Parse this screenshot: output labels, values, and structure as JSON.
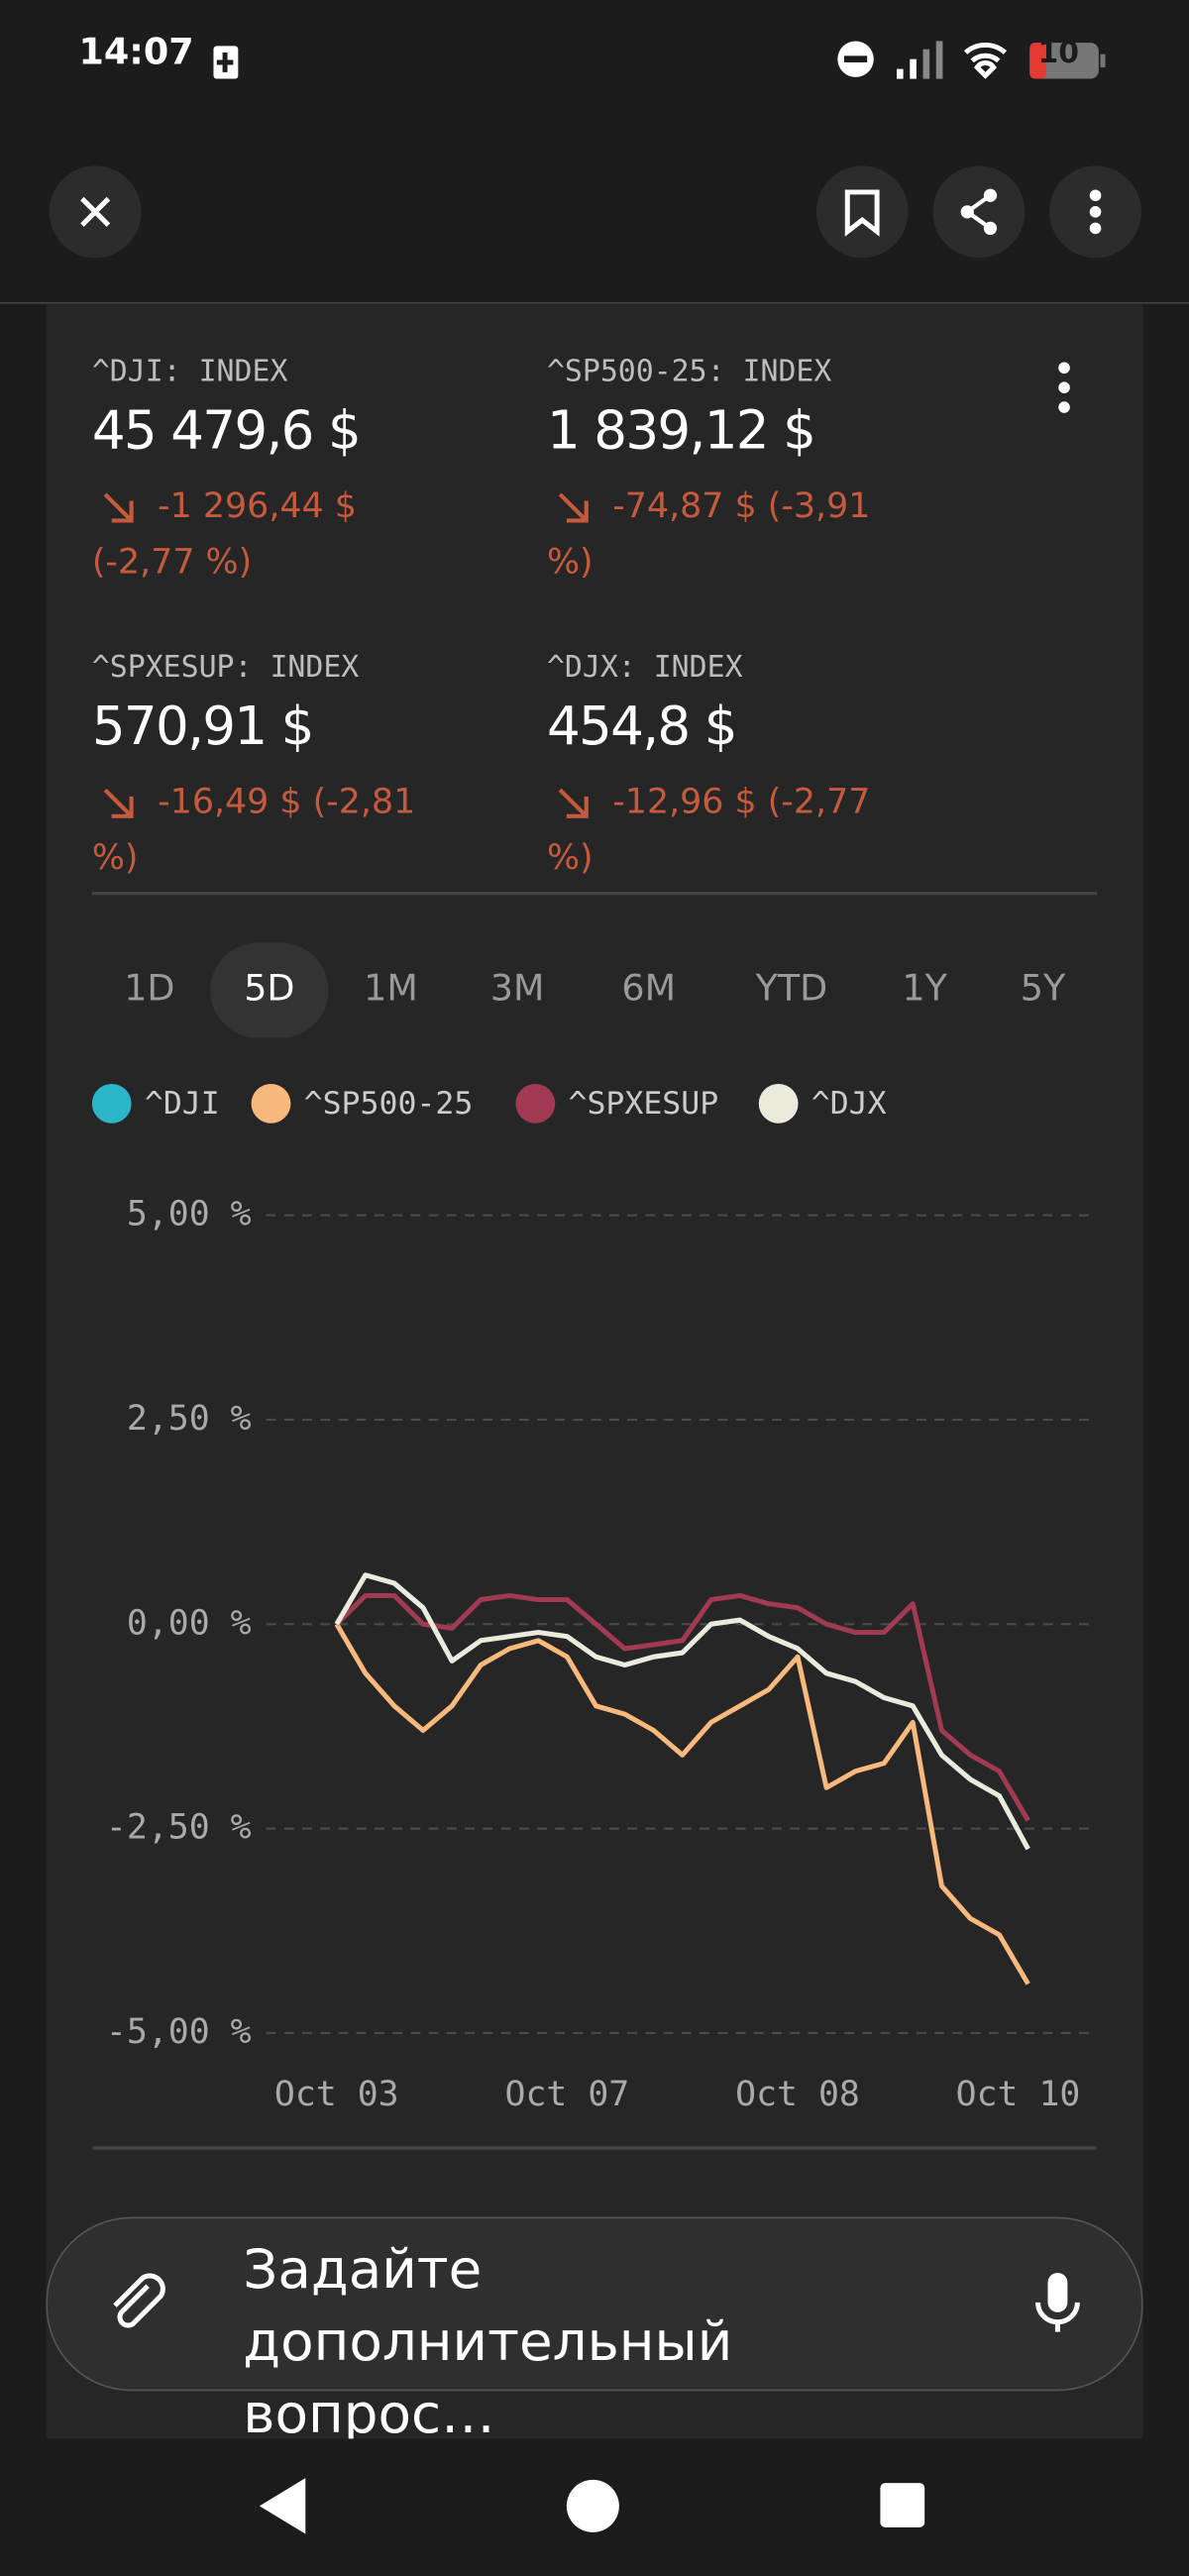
{
  "status_bar": {
    "time": "14:07",
    "battery": "10"
  },
  "quotes": [
    {
      "name": "^DJI: INDEX",
      "price": "45 479,6 $",
      "change": "-1 296,44 $ (-2,77 %)"
    },
    {
      "name": "^SP500-25: INDEX",
      "price": "1 839,12 $",
      "change": "-74,87 $ (-3,91 %)"
    },
    {
      "name": "^SPXESUP: INDEX",
      "price": "570,91 $",
      "change": "-16,49 $ (-2,81 %)"
    },
    {
      "name": "^DJX: INDEX",
      "price": "454,8 $",
      "change": "-12,96 $ (-2,77 %)"
    }
  ],
  "periods": [
    "1D",
    "5D",
    "1M",
    "3M",
    "6M",
    "YTD",
    "1Y",
    "5Y"
  ],
  "active_period": "5D",
  "chart_data": {
    "type": "line",
    "x": [
      0,
      0.125,
      0.25,
      0.375,
      0.5,
      0.625,
      0.75,
      0.875,
      1,
      1.125,
      1.25,
      1.375,
      1.5,
      1.625,
      1.75,
      1.875,
      2,
      2.125,
      2.25,
      2.375,
      2.5,
      2.625,
      2.75,
      2.875,
      3
    ],
    "xlim": [
      0,
      3
    ],
    "xticks": [
      {
        "value": 0,
        "label": "Oct 03"
      },
      {
        "value": 1,
        "label": "Oct 07"
      },
      {
        "value": 2,
        "label": "Oct 08"
      },
      {
        "value": 3,
        "label": "Oct 10"
      }
    ],
    "ylim": [
      -5,
      5
    ],
    "yticks": [
      {
        "value": 5,
        "label": "5,00 %"
      },
      {
        "value": 2.5,
        "label": "2,50 %"
      },
      {
        "value": 0,
        "label": "0,00 %"
      },
      {
        "value": -2.5,
        "label": "-2,50 %"
      },
      {
        "value": -5,
        "label": "-5,00 %"
      }
    ],
    "grid": true,
    "series": [
      {
        "name": "^DJI",
        "color": "#2bb5c8",
        "values": [
          0,
          0.6,
          0.5,
          0.2,
          -0.45,
          -0.2,
          -0.15,
          -0.1,
          -0.15,
          -0.4,
          -0.5,
          -0.4,
          -0.35,
          0,
          0.05,
          -0.15,
          -0.3,
          -0.6,
          -0.7,
          -0.9,
          -1,
          -1.6,
          -1.9,
          -2.1,
          -2.75
        ]
      },
      {
        "name": "^SP500-25",
        "color": "#f8b97c",
        "values": [
          0,
          -0.6,
          -1,
          -1.3,
          -1,
          -0.5,
          -0.3,
          -0.2,
          -0.4,
          -1,
          -1.1,
          -1.3,
          -1.6,
          -1.2,
          -1,
          -0.8,
          -0.4,
          -2,
          -1.8,
          -1.7,
          -1.2,
          -3.2,
          -3.6,
          -3.8,
          -4.4
        ]
      },
      {
        "name": "^SPXESUP",
        "color": "#a23b52",
        "values": [
          0,
          0.35,
          0.35,
          0,
          -0.05,
          0.3,
          0.35,
          0.3,
          0.3,
          0,
          -0.3,
          -0.25,
          -0.2,
          0.3,
          0.35,
          0.25,
          0.2,
          0,
          -0.1,
          -0.1,
          0.25,
          -1.3,
          -1.6,
          -1.8,
          -2.4
        ]
      },
      {
        "name": "^DJX",
        "color": "#ebeadb",
        "values": [
          0,
          0.6,
          0.5,
          0.2,
          -0.45,
          -0.2,
          -0.15,
          -0.1,
          -0.15,
          -0.4,
          -0.5,
          -0.4,
          -0.35,
          0,
          0.05,
          -0.15,
          -0.3,
          -0.6,
          -0.7,
          -0.9,
          -1,
          -1.6,
          -1.9,
          -2.1,
          -2.75
        ]
      }
    ]
  },
  "input": {
    "placeholder": "Задайте дополнительный вопрос…"
  }
}
